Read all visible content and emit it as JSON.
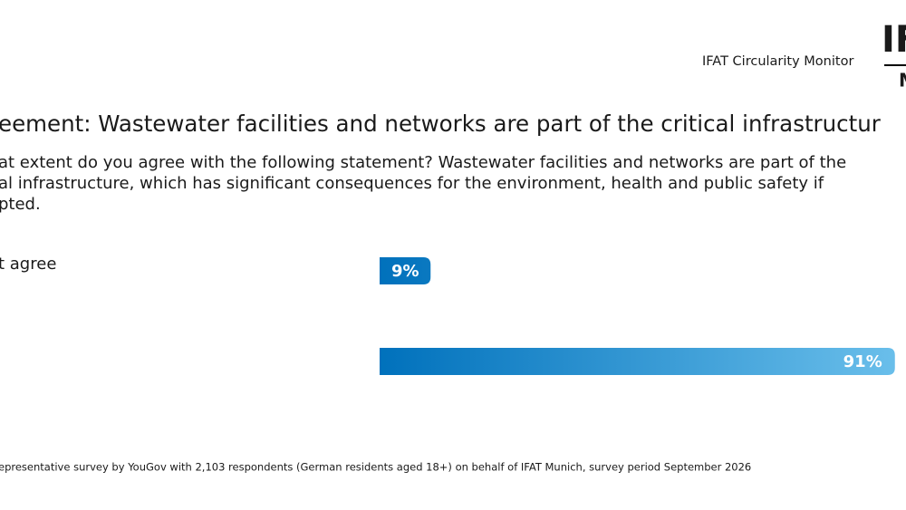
{
  "header": {
    "text": "IFAT Circularity Monitor",
    "logo_top": "IF",
    "logo_bottom": "M"
  },
  "chart_data": {
    "type": "bar",
    "orientation": "horizontal",
    "title": "eement: Wastewater facilities and networks are part of the critical infrastructur",
    "subtitle": [
      "at extent do you agree with the following statement? Wastewater facilities and networks are part of the",
      "al infrastructure, which has significant consequences for the environment, health and public safety if",
      "pted."
    ],
    "categories": [
      "t agree",
      null
    ],
    "values": [
      9,
      91
    ],
    "value_labels": [
      "9%",
      "91%"
    ],
    "color": "#0071bc",
    "gradient_color": "#74c6ef"
  },
  "footnote": "epresentative survey by YouGov with 2,103 respondents (German residents aged 18+) on behalf of IFAT Munich, survey period September 2026"
}
